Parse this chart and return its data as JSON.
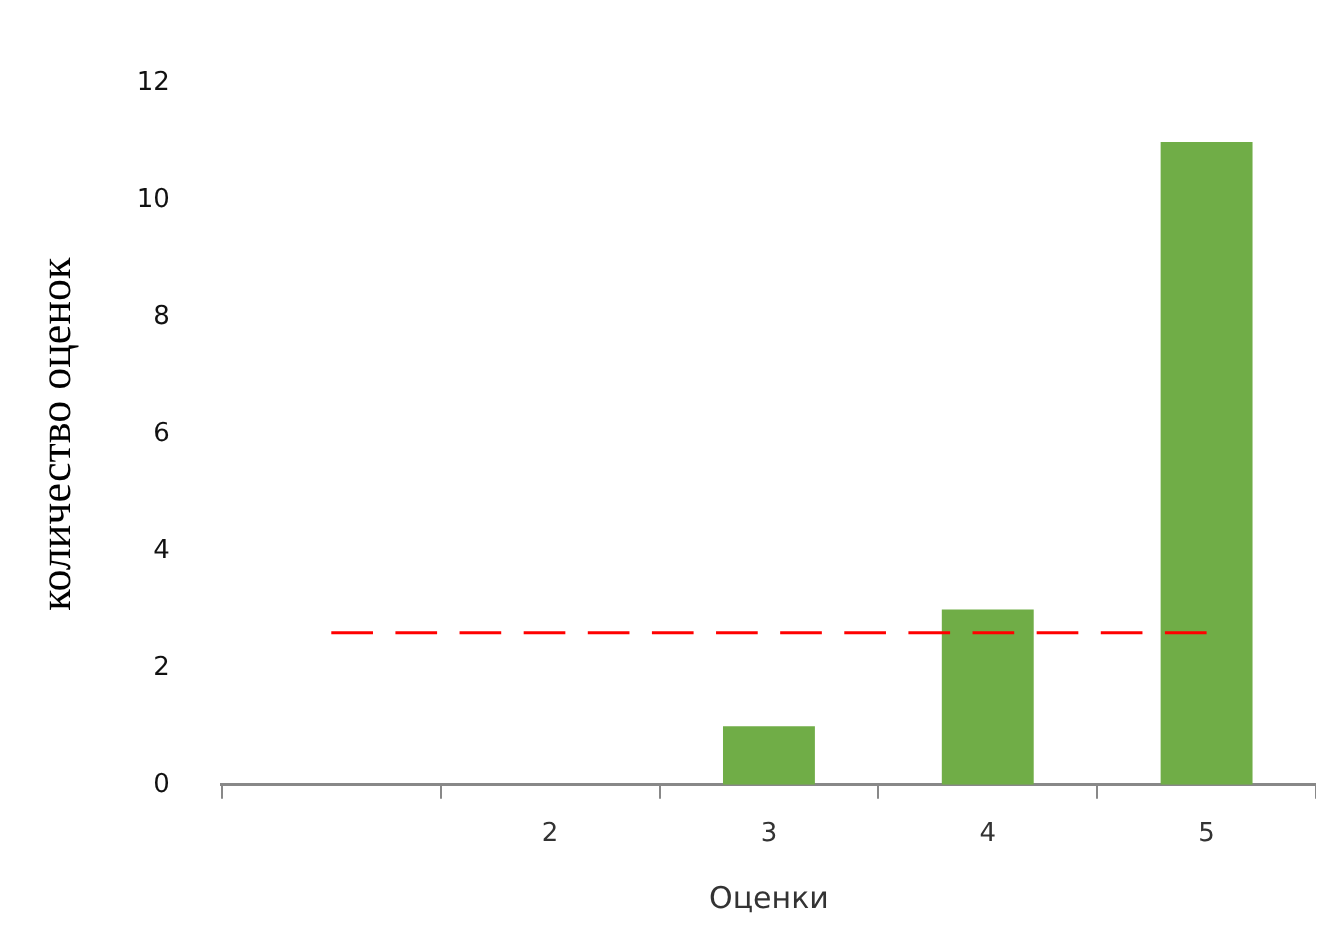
{
  "chart_data": {
    "type": "bar",
    "xlabel": "Оценки",
    "ylabel": "количество оценок",
    "categories": [
      null,
      "2",
      "3",
      "4",
      "5"
    ],
    "series": [
      {
        "color": "#70ad47",
        "values": [
          0,
          0,
          1,
          3,
          11
        ]
      },
      {
        "type": "line",
        "color": "#ff0000",
        "line_style": "dashed",
        "marker": "none",
        "values": [
          2.6,
          2.6,
          2.6,
          2.6,
          2.6
        ]
      }
    ],
    "ylim": [
      0,
      12
    ],
    "yticks": [
      0,
      2,
      4,
      6,
      8,
      10,
      12
    ],
    "grid": false,
    "legend": false
  }
}
